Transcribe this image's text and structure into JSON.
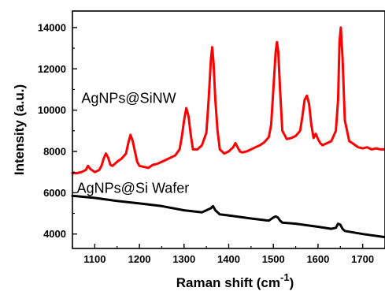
{
  "chart_data": {
    "type": "line",
    "xlabel": "Raman shift (cm",
    "xlabel_sup": "-1",
    "xlabel_close": ")",
    "ylabel": "Intensity (a.u.)",
    "xlim": [
      1050,
      1750
    ],
    "ylim": [
      3300,
      14800
    ],
    "x_ticks": [
      1100,
      1200,
      1300,
      1400,
      1500,
      1600,
      1700
    ],
    "y_ticks": [
      4000,
      6000,
      8000,
      10000,
      12000,
      14000
    ],
    "grid": false,
    "series": [
      {
        "name": "AgNPs@SiNW",
        "color": "#ff0000",
        "x": [
          1050,
          1060,
          1070,
          1080,
          1085,
          1090,
          1100,
          1110,
          1115,
          1120,
          1125,
          1130,
          1135,
          1140,
          1150,
          1160,
          1170,
          1175,
          1180,
          1185,
          1190,
          1195,
          1200,
          1210,
          1220,
          1230,
          1240,
          1250,
          1260,
          1270,
          1280,
          1290,
          1295,
          1300,
          1305,
          1310,
          1315,
          1320,
          1330,
          1340,
          1350,
          1355,
          1360,
          1363,
          1366,
          1370,
          1375,
          1380,
          1390,
          1400,
          1410,
          1415,
          1420,
          1425,
          1430,
          1440,
          1450,
          1460,
          1470,
          1480,
          1490,
          1495,
          1500,
          1505,
          1508,
          1511,
          1515,
          1520,
          1530,
          1540,
          1550,
          1560,
          1565,
          1570,
          1575,
          1580,
          1585,
          1590,
          1595,
          1600,
          1605,
          1610,
          1620,
          1630,
          1640,
          1645,
          1648,
          1651,
          1655,
          1660,
          1670,
          1680,
          1690,
          1700,
          1710,
          1720,
          1730,
          1740,
          1750
        ],
        "y": [
          6950,
          6950,
          7000,
          7100,
          7300,
          7150,
          7000,
          7100,
          7300,
          7650,
          7900,
          7700,
          7350,
          7300,
          7500,
          7650,
          7900,
          8400,
          8800,
          8500,
          8000,
          7500,
          7300,
          7250,
          7200,
          7350,
          7400,
          7500,
          7600,
          7700,
          7800,
          8100,
          8700,
          9500,
          10100,
          9700,
          8800,
          8100,
          8100,
          8300,
          8900,
          10500,
          12400,
          13050,
          12300,
          10500,
          9000,
          8100,
          7900,
          8000,
          8200,
          8400,
          8200,
          8000,
          7950,
          8000,
          8100,
          8200,
          8300,
          8450,
          8700,
          9300,
          11000,
          12800,
          13300,
          12800,
          11000,
          9000,
          8600,
          8650,
          8750,
          9000,
          9700,
          10500,
          10700,
          10300,
          9300,
          8650,
          8850,
          8600,
          8400,
          8300,
          8400,
          8500,
          9000,
          10500,
          13300,
          14000,
          12500,
          9500,
          8500,
          8350,
          8200,
          8150,
          8200,
          8100,
          8150,
          8100,
          8100
        ]
      },
      {
        "name": "AgNPs@Si Wafer",
        "color": "#000000",
        "x": [
          1050,
          1100,
          1150,
          1200,
          1250,
          1300,
          1340,
          1350,
          1360,
          1365,
          1370,
          1380,
          1400,
          1450,
          1490,
          1500,
          1505,
          1510,
          1515,
          1520,
          1550,
          1600,
          1630,
          1640,
          1645,
          1650,
          1655,
          1660,
          1700,
          1750
        ],
        "y": [
          5850,
          5750,
          5600,
          5480,
          5350,
          5150,
          5050,
          5150,
          5250,
          5350,
          5150,
          4950,
          4900,
          4750,
          4650,
          4800,
          4850,
          4800,
          4650,
          4550,
          4500,
          4350,
          4250,
          4300,
          4500,
          4450,
          4250,
          4150,
          4000,
          3850
        ]
      }
    ],
    "annotations": [
      {
        "text": "AgNPs@SiNW",
        "x": 1070,
        "y": 10350
      },
      {
        "text": "AgNPs@Si Wafer",
        "x": 1060,
        "y": 6000
      }
    ]
  }
}
